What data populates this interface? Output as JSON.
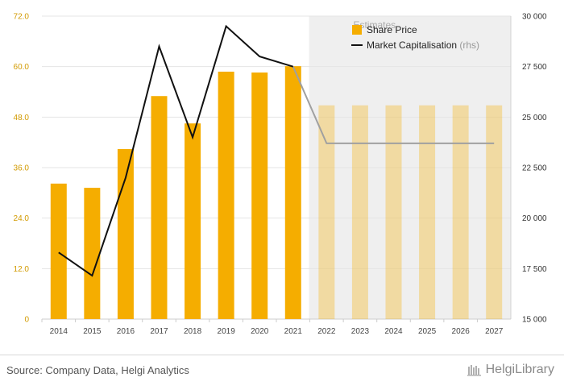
{
  "chart_data": {
    "type": "bar",
    "categories": [
      "2014",
      "2015",
      "2016",
      "2017",
      "2018",
      "2019",
      "2020",
      "2021",
      "2022",
      "2023",
      "2024",
      "2025",
      "2026",
      "2027"
    ],
    "estimates_from": "2022",
    "estimates_label": "Estimates",
    "series": [
      {
        "name": "Share Price",
        "type": "bar",
        "axis": "left",
        "color": "#f5ad00",
        "values": [
          32.2,
          31.2,
          40.4,
          53.0,
          46.5,
          58.8,
          58.6,
          60.1,
          50.8,
          50.8,
          50.8,
          50.8,
          50.8,
          50.8
        ]
      },
      {
        "name": "Market Capitalisation",
        "name_suffix": "(rhs)",
        "type": "line",
        "axis": "right",
        "color": "#111111",
        "values": [
          18300,
          17150,
          22000,
          28500,
          24000,
          29500,
          28000,
          27500,
          23700,
          23700,
          23700,
          23700,
          23700,
          23700
        ]
      }
    ],
    "y_left": {
      "min": 0,
      "max": 72,
      "ticks": [
        "0",
        "12.0",
        "24.0",
        "36.0",
        "48.0",
        "60.0",
        "72.0"
      ]
    },
    "y_right": {
      "min": 15000,
      "max": 30000,
      "ticks": [
        "15 000",
        "17 500",
        "20 000",
        "22 500",
        "25 000",
        "27 500",
        "30 000"
      ]
    },
    "grid": true,
    "legend_position": "top-center"
  },
  "footer": {
    "source": "Source: Company Data, Helgi Analytics",
    "brand": "HelgiLibrary"
  }
}
